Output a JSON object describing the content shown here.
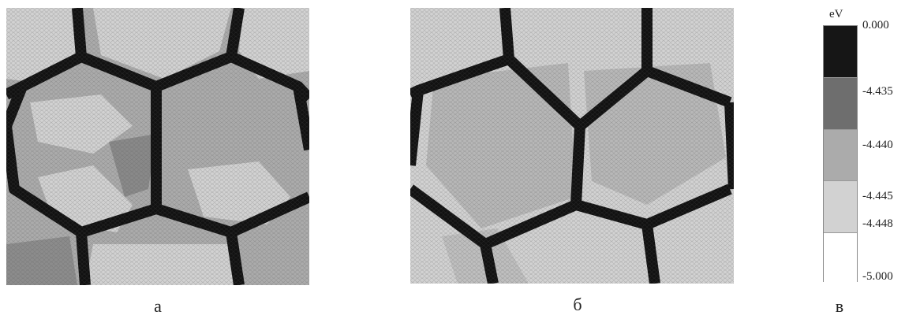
{
  "panels": [
    {
      "id": "a",
      "caption": "а",
      "kind": "grain-energy-map"
    },
    {
      "id": "b",
      "caption": "б",
      "kind": "grain-energy-map"
    }
  ],
  "colorbar": {
    "caption": "в",
    "unit": "eV",
    "ticks": [
      "0.000",
      "-4.435",
      "-4.440",
      "-4.445",
      "-4.448",
      "-5.000"
    ],
    "band_colors": [
      "#161616",
      "#6e6e6e",
      "#ababab",
      "#d2d2d2",
      "#ffffff"
    ]
  },
  "colors": {
    "boundary": "#111111",
    "grain_light": "#d3d3d3",
    "grain_mid": "#acacac",
    "grain_dark": "#6f6f6f"
  }
}
